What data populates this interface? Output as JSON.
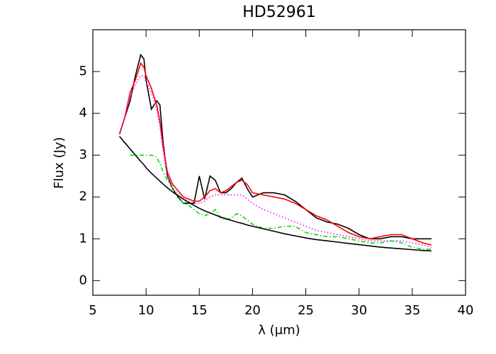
{
  "chart_data": {
    "type": "line",
    "title": "HD52961",
    "x_label": "λ (μm)",
    "y_label": "Flux (Jy)",
    "x": [
      7.5,
      8,
      8.5,
      9,
      9.5,
      9.8,
      10,
      10.5,
      11,
      11.3,
      11.6,
      12,
      12.5,
      13,
      13.5,
      14,
      14.5,
      15,
      15.5,
      16,
      16.5,
      17,
      17.5,
      18,
      18.5,
      19,
      19.5,
      20,
      21,
      22,
      23,
      24,
      25,
      26,
      27,
      28,
      29,
      30,
      31,
      32,
      33,
      34,
      35,
      36,
      36.8
    ],
    "series": [
      {
        "color": "#000000",
        "style": "solid",
        "values": [
          3.5,
          3.9,
          4.3,
          4.9,
          5.4,
          5.3,
          4.8,
          4.1,
          4.3,
          4.2,
          3.3,
          2.5,
          2.2,
          2.0,
          1.85,
          1.85,
          1.85,
          2.5,
          1.95,
          2.5,
          2.4,
          2.1,
          2.1,
          2.2,
          2.35,
          2.45,
          2.2,
          2.0,
          2.1,
          2.1,
          2.05,
          1.9,
          1.7,
          1.5,
          1.4,
          1.35,
          1.25,
          1.1,
          1.0,
          1.0,
          1.05,
          1.05,
          1.0,
          1.0,
          1.0
        ]
      },
      {
        "color": "#ff0000",
        "style": "solid",
        "values": [
          3.5,
          3.9,
          4.5,
          4.8,
          5.2,
          5.1,
          4.9,
          4.6,
          4.2,
          3.8,
          3.2,
          2.6,
          2.3,
          2.15,
          2.0,
          1.95,
          1.9,
          1.9,
          2.0,
          2.15,
          2.2,
          2.1,
          2.15,
          2.25,
          2.35,
          2.4,
          2.3,
          2.1,
          2.05,
          2.0,
          1.95,
          1.85,
          1.7,
          1.55,
          1.45,
          1.3,
          1.15,
          1.05,
          1.0,
          1.05,
          1.1,
          1.1,
          1.0,
          0.9,
          0.85
        ]
      },
      {
        "color": "#ff00ff",
        "style": "dotted",
        "values": [
          3.5,
          3.9,
          4.4,
          4.7,
          4.9,
          4.9,
          4.75,
          4.5,
          4.1,
          3.7,
          3.1,
          2.5,
          2.2,
          2.05,
          1.95,
          1.9,
          1.85,
          1.85,
          1.9,
          2.0,
          2.05,
          2.05,
          2.05,
          2.05,
          2.05,
          2.05,
          1.95,
          1.85,
          1.7,
          1.6,
          1.5,
          1.4,
          1.3,
          1.2,
          1.15,
          1.1,
          1.05,
          1.0,
          0.95,
          0.95,
          0.95,
          0.95,
          0.9,
          0.85,
          0.8
        ]
      },
      {
        "color": "#00dd00",
        "style": "dashdot",
        "values": [
          null,
          null,
          3.0,
          3.0,
          3.0,
          3.0,
          3.0,
          3.0,
          2.95,
          2.8,
          2.6,
          2.4,
          2.2,
          2.0,
          1.85,
          1.8,
          1.7,
          1.6,
          1.55,
          1.6,
          1.7,
          1.5,
          1.45,
          1.5,
          1.6,
          1.55,
          1.45,
          1.35,
          1.25,
          1.25,
          1.3,
          1.3,
          1.15,
          1.1,
          1.05,
          1.05,
          1.0,
          0.95,
          0.9,
          0.9,
          0.95,
          0.9,
          0.8,
          0.75,
          0.75
        ]
      },
      {
        "color": "#000000",
        "style": "solid",
        "values": [
          3.45,
          3.3,
          3.15,
          3.0,
          2.85,
          2.77,
          2.7,
          2.57,
          2.45,
          2.38,
          2.31,
          2.22,
          2.12,
          2.03,
          1.95,
          1.87,
          1.8,
          1.73,
          1.67,
          1.62,
          1.57,
          1.52,
          1.48,
          1.44,
          1.4,
          1.37,
          1.33,
          1.3,
          1.24,
          1.18,
          1.12,
          1.07,
          1.02,
          0.98,
          0.95,
          0.92,
          0.89,
          0.86,
          0.83,
          0.8,
          0.78,
          0.76,
          0.74,
          0.72,
          0.71
        ]
      }
    ],
    "xlim": [
      5,
      40
    ],
    "xticks": [
      5,
      10,
      15,
      20,
      25,
      30,
      35,
      40
    ],
    "ylim": [
      -0.35,
      6.0
    ],
    "yticks": [
      0,
      1,
      2,
      3,
      4,
      5
    ]
  }
}
